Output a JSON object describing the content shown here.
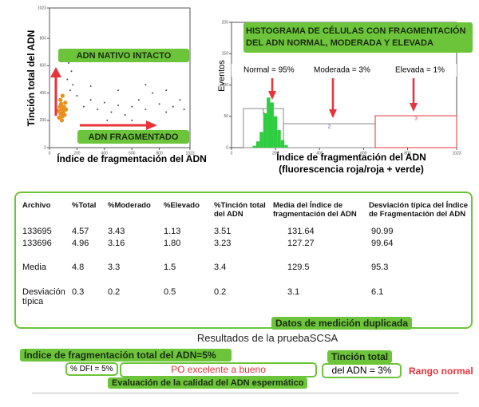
{
  "chart_data": [
    {
      "type": "scatter",
      "y_label": "Tinción total del ADN",
      "x_label": "Índice de fragmentación del ADN",
      "annotations": [
        "ADN NATIVO INTACTO",
        "ADN FRAGMENTADO"
      ],
      "xlim": [
        0,
        1023
      ],
      "ylim": [
        0,
        1023
      ],
      "xticks": [
        0,
        200,
        400,
        600,
        800,
        1023
      ],
      "yticks": [
        0,
        200,
        400,
        600,
        800,
        1023
      ],
      "series": [
        {
          "color": "#e8901a",
          "x": [
            70,
            80,
            90,
            75,
            95,
            85,
            100,
            110,
            65,
            90,
            105,
            120,
            80,
            95,
            115
          ],
          "y": [
            220,
            250,
            280,
            300,
            230,
            320,
            260,
            240,
            270,
            200,
            300,
            280,
            350,
            380,
            330
          ]
        },
        {
          "color": "#4b3a8c",
          "x": [
            150,
            130,
            160,
            140,
            170,
            200,
            250,
            300,
            350,
            400,
            450,
            500,
            550,
            600,
            650,
            700,
            750,
            800,
            850,
            900,
            950,
            980,
            300,
            500,
            700,
            420,
            600,
            850
          ],
          "y": [
            420,
            500,
            560,
            620,
            460,
            380,
            300,
            350,
            280,
            330,
            260,
            310,
            240,
            300,
            350,
            280,
            400,
            320,
            260,
            300,
            350,
            280,
            450,
            420,
            460,
            200,
            200,
            420
          ]
        }
      ]
    },
    {
      "type": "histogram",
      "title": "HISTOGRAMA DE CÉLULAS CON FRAGMENTACIÓN DEL ADN NORMAL, MODERADA Y ELEVADA",
      "y_label": "Eventos",
      "x_label": "Índice de fragmentación del ADN",
      "x_sublabel": "(fluorescencia roja/roja + verde)",
      "annotations": [
        "Normal = 95%",
        "Moderada = 3%",
        "Elevada = 1%"
      ],
      "bins": [
        96,
        112,
        128,
        144,
        160,
        176,
        192,
        208,
        224,
        240,
        256
      ],
      "counts": [
        3,
        10,
        25,
        55,
        80,
        72,
        50,
        28,
        12,
        4
      ],
      "color": "#2ecc40",
      "gates": [
        {
          "label": "1",
          "range": [
            54,
            236
          ]
        },
        {
          "label": "2",
          "range": [
            236,
            653
          ]
        },
        {
          "label": "3",
          "range": [
            653,
            1023
          ]
        }
      ],
      "xlim": [
        0,
        1023
      ],
      "ylim": [
        0,
        200
      ],
      "xticks": [
        0,
        200,
        400,
        600,
        800,
        1023
      ],
      "yticks": [
        0,
        50,
        100,
        150,
        200
      ]
    }
  ],
  "table": {
    "headers": [
      "Archivo",
      "%Total",
      "%Moderado",
      "%Elevado",
      "%Tinción total del ADN",
      "Media del Índice de fragmentación del ADN",
      "Desviación típica del Índice de Fragmentación del ADN"
    ],
    "rows": [
      [
        "133695",
        "4.57",
        "3.43",
        "1.13",
        "3.51",
        "131.64",
        "90.99"
      ],
      [
        "133696",
        "4.96",
        "3.16",
        "1.80",
        "3.23",
        "127.27",
        "99.64"
      ],
      [
        "Media",
        "4.8",
        "3.3",
        "1.5",
        "3.4",
        "129.5",
        "95.3"
      ],
      [
        "Desviación típica",
        "0.3",
        "0.2",
        "0.5",
        "0.2",
        "3.1",
        "6.1"
      ]
    ],
    "caption": "Datos de medición duplicada"
  },
  "results": {
    "title": "Resultados de la pruebaSCSA",
    "dfi_total": "Índice de fragmentación total del ADN=5%",
    "dfi": "% DFI = 5%",
    "quality": "PO excelente a bueno",
    "stain_title": "Tinción total",
    "stain_value": "del ADN = 3%",
    "range": "Rango normal",
    "evaluation": "Evaluación de la calidad del ADN espermático"
  }
}
